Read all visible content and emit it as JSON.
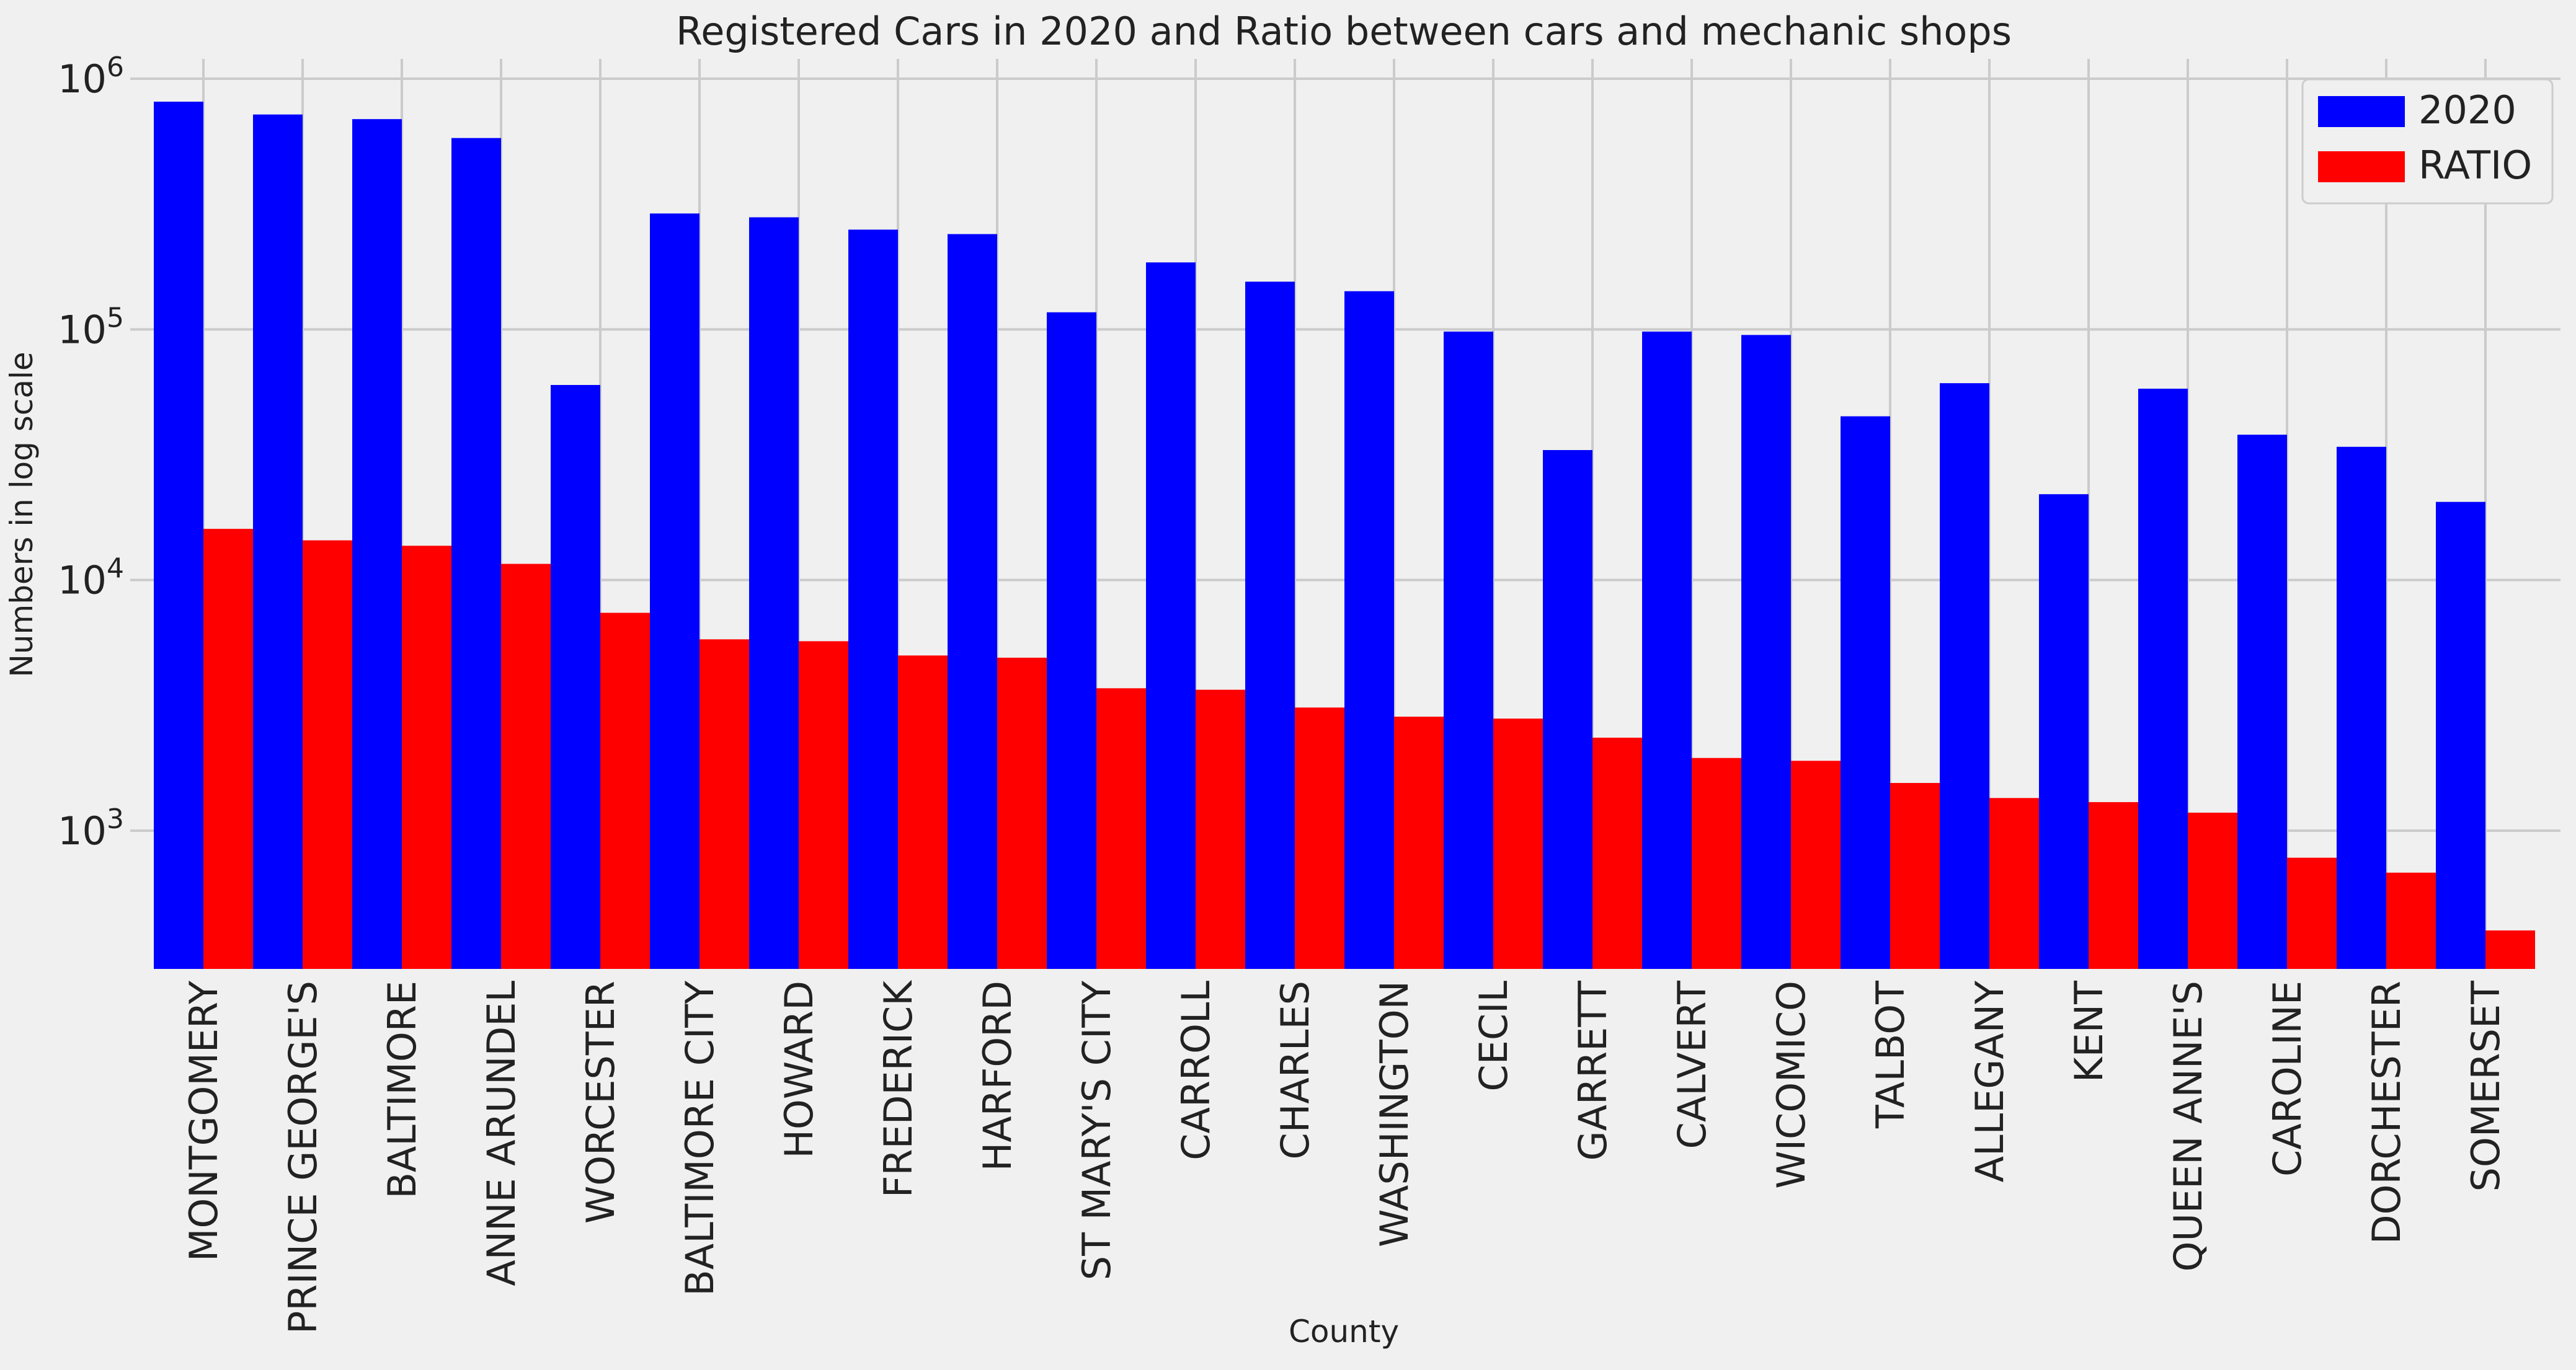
{
  "chart_data": {
    "type": "bar",
    "title": "Registered Cars in 2020 and Ratio between cars and mechanic shops",
    "xlabel": "County",
    "ylabel": "Numbers in log scale",
    "yscale": "log",
    "ylim": [
      270,
      1200000
    ],
    "y_ticks": [
      {
        "value": 1000,
        "base": "10",
        "exp": "3"
      },
      {
        "value": 10000,
        "base": "10",
        "exp": "4"
      },
      {
        "value": 100000,
        "base": "10",
        "exp": "5"
      },
      {
        "value": 1000000,
        "base": "10",
        "exp": "6"
      }
    ],
    "grid": true,
    "legend_position": "top-right",
    "categories": [
      "MONTGOMERY",
      "PRINCE GEORGE'S",
      "BALTIMORE",
      "ANNE ARUNDEL",
      "WORCESTER",
      "BALTIMORE CITY",
      "HOWARD",
      "FREDERICK",
      "HARFORD",
      "ST MARY'S CITY",
      "CARROLL",
      "CHARLES",
      "WASHINGTON",
      "CECIL",
      "GARRETT",
      "CALVERT",
      "WICOMICO",
      "TALBOT",
      "ALLEGANY",
      "KENT",
      "QUEEN ANNE'S",
      "CAROLINE",
      "DORCHESTER",
      "SOMERSET"
    ],
    "series": [
      {
        "name": "2020",
        "color": "#0000ff",
        "values": [
          810000,
          720000,
          690000,
          580000,
          60000,
          290000,
          280000,
          250000,
          240000,
          117000,
          185000,
          155000,
          142000,
          98000,
          33000,
          98000,
          95000,
          45000,
          61000,
          22000,
          58000,
          38000,
          34000,
          20500
        ]
      },
      {
        "name": "RATIO",
        "color": "#ff0000",
        "values": [
          16000,
          14400,
          13700,
          11600,
          7400,
          5800,
          5700,
          5000,
          4900,
          3700,
          3650,
          3100,
          2850,
          2800,
          2350,
          1950,
          1900,
          1550,
          1350,
          1300,
          1180,
          780,
          680,
          400
        ]
      }
    ]
  }
}
